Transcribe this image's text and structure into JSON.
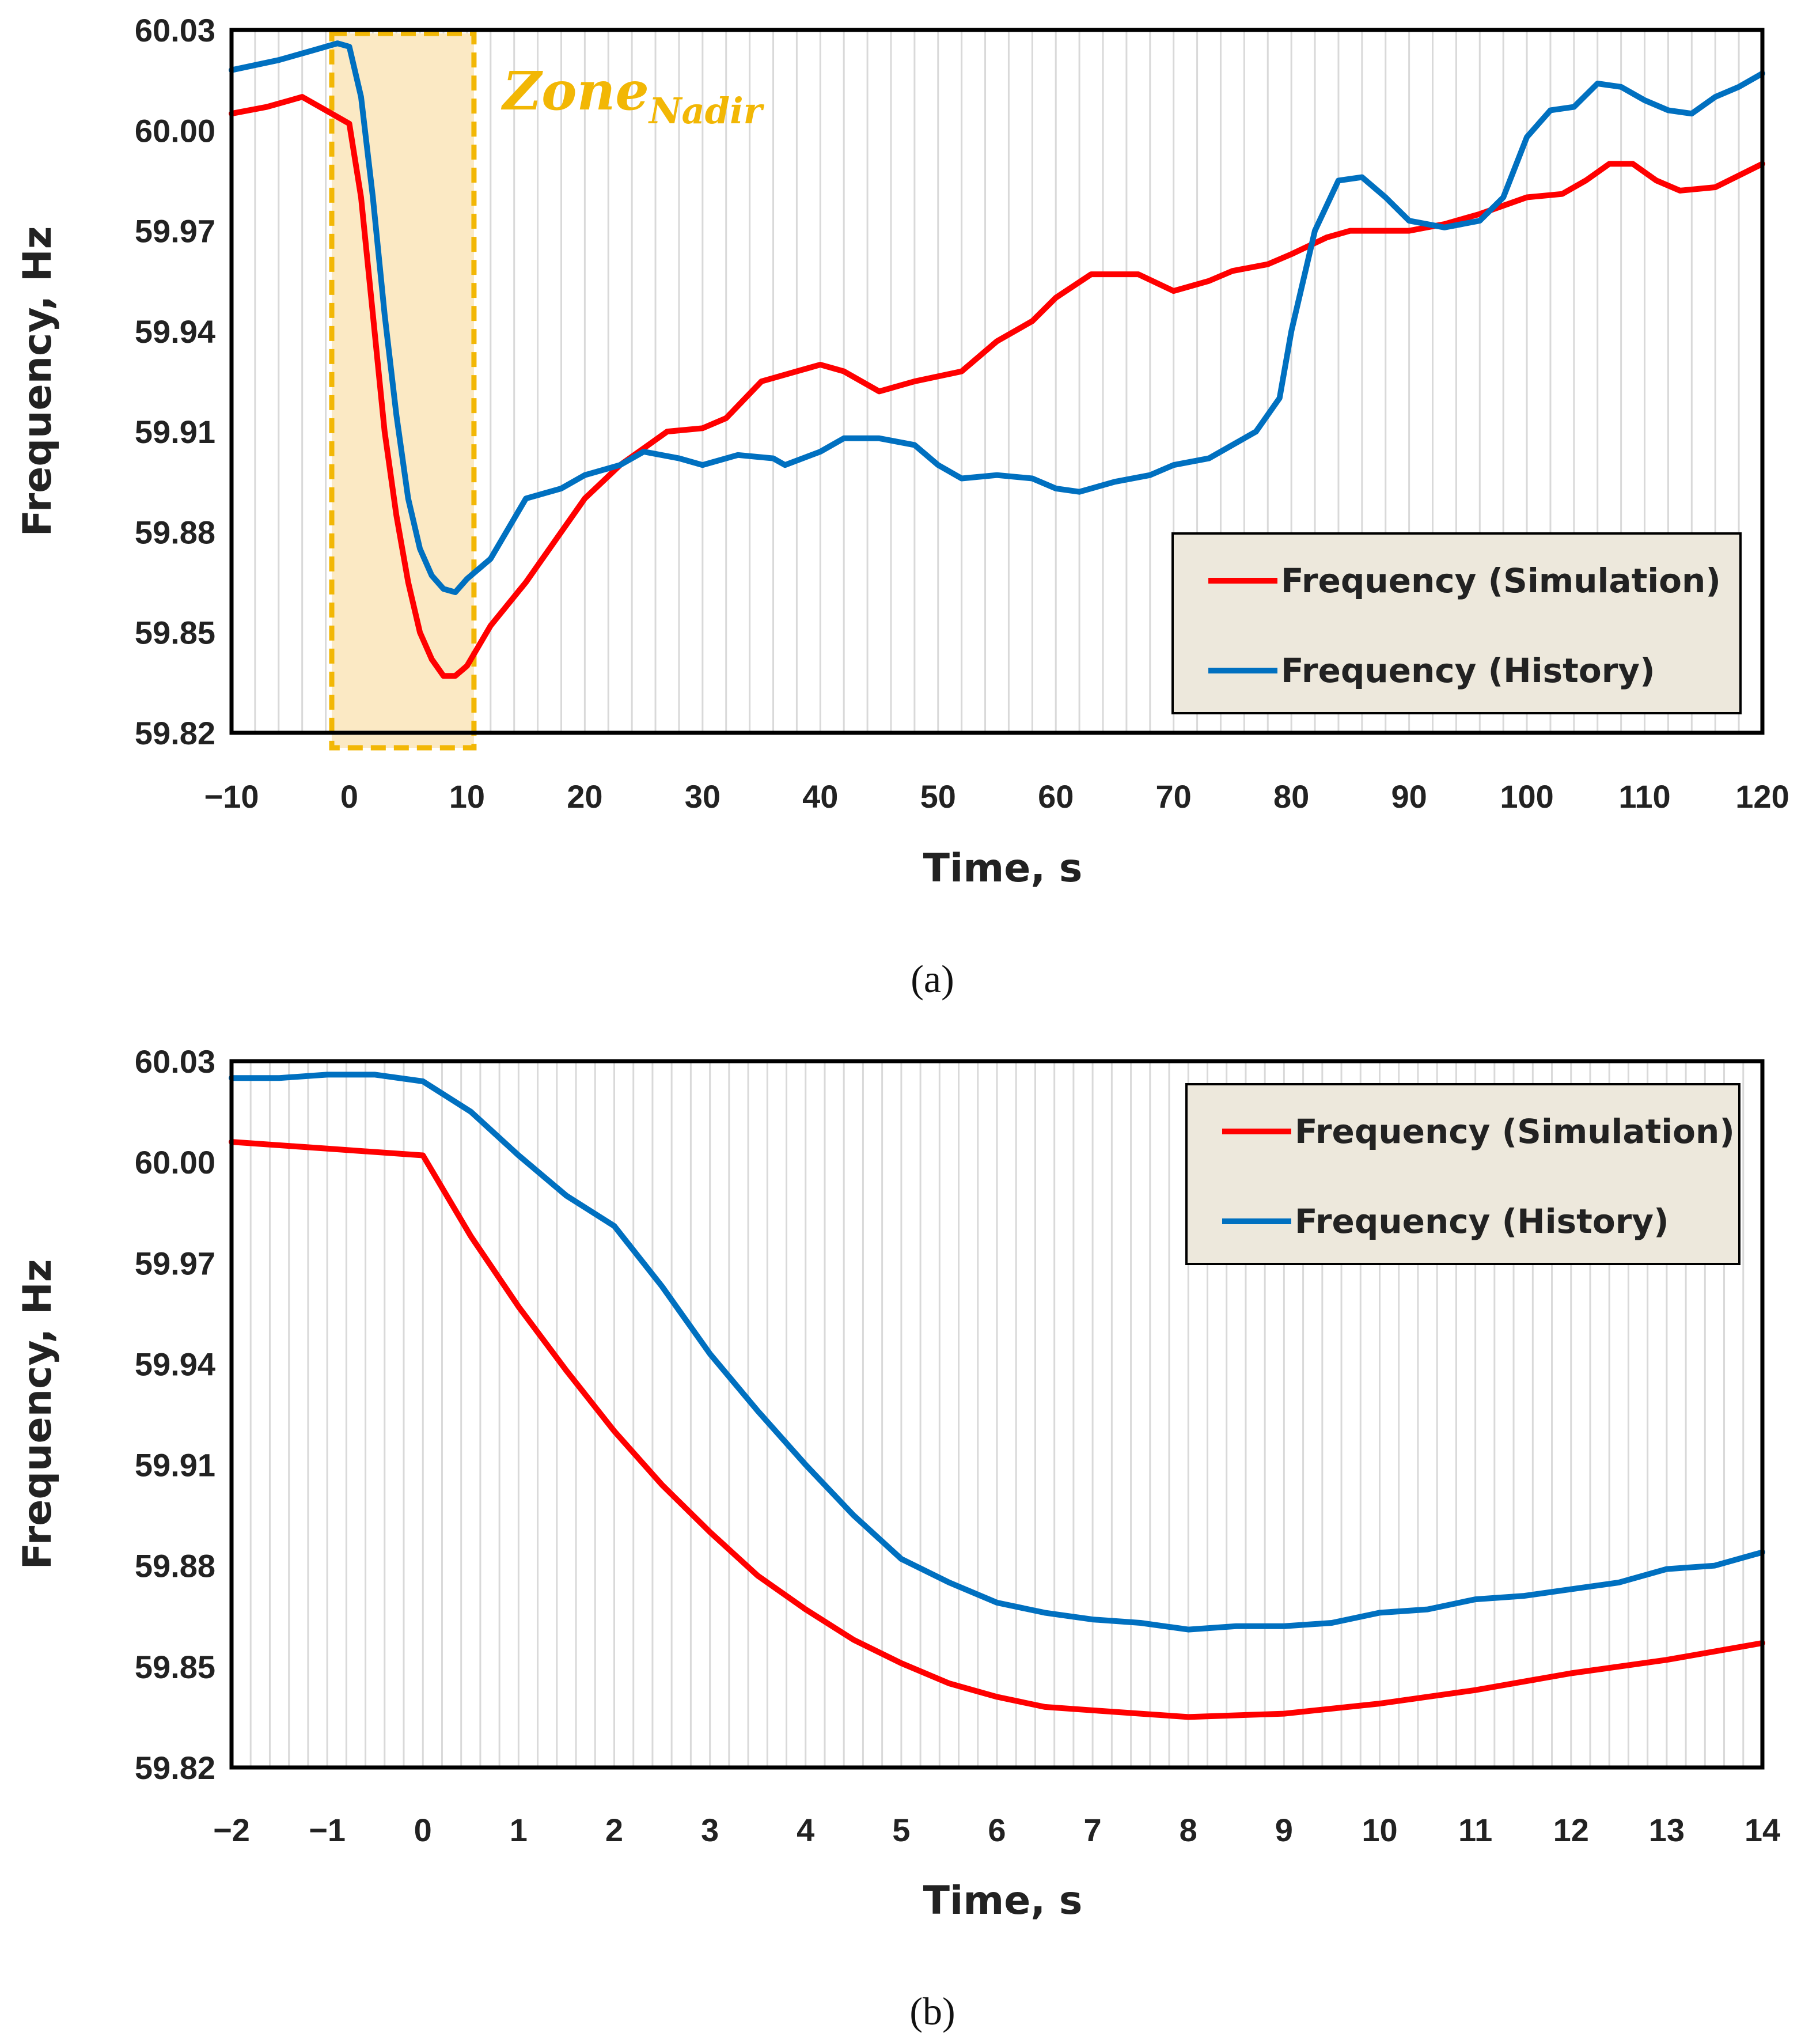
{
  "chart_data": [
    {
      "type": "line",
      "panel_label": "(a)",
      "xlabel": "Time, s",
      "ylabel": "Frequency, Hz",
      "xlim": [
        -10,
        120
      ],
      "ylim": [
        59.82,
        60.03
      ],
      "x_ticks": [
        "−10",
        "0",
        "10",
        "20",
        "30",
        "40",
        "50",
        "60",
        "70",
        "80",
        "90",
        "100",
        "110",
        "120"
      ],
      "y_ticks": [
        "60.03",
        "60.00",
        "59.97",
        "59.94",
        "59.91",
        "59.88",
        "59.85",
        "59.82"
      ],
      "grid": "vertical minor gridlines",
      "legend_position": "bottom-right",
      "annotation": {
        "text": "Zone",
        "subscript": "Nadir",
        "x_range": [
          -1,
          10
        ],
        "color": "#f2b705",
        "fill": "#fbe9c4"
      },
      "series": [
        {
          "name": "Frequency (Simulation)",
          "color": "#ff0000",
          "points": [
            [
              -10,
              60.005
            ],
            [
              -7,
              60.007
            ],
            [
              -4,
              60.01
            ],
            [
              -2,
              60.006
            ],
            [
              0,
              60.002
            ],
            [
              1,
              59.98
            ],
            [
              2,
              59.945
            ],
            [
              3,
              59.91
            ],
            [
              4,
              59.885
            ],
            [
              5,
              59.865
            ],
            [
              6,
              59.85
            ],
            [
              7,
              59.842
            ],
            [
              8,
              59.837
            ],
            [
              9,
              59.837
            ],
            [
              10,
              59.84
            ],
            [
              12,
              59.852
            ],
            [
              15,
              59.865
            ],
            [
              18,
              59.88
            ],
            [
              20,
              59.89
            ],
            [
              23,
              59.9
            ],
            [
              25,
              59.905
            ],
            [
              27,
              59.91
            ],
            [
              30,
              59.911
            ],
            [
              32,
              59.914
            ],
            [
              35,
              59.925
            ],
            [
              38,
              59.928
            ],
            [
              40,
              59.93
            ],
            [
              42,
              59.928
            ],
            [
              45,
              59.922
            ],
            [
              48,
              59.925
            ],
            [
              52,
              59.928
            ],
            [
              55,
              59.937
            ],
            [
              58,
              59.943
            ],
            [
              60,
              59.95
            ],
            [
              63,
              59.957
            ],
            [
              67,
              59.957
            ],
            [
              70,
              59.952
            ],
            [
              73,
              59.955
            ],
            [
              75,
              59.958
            ],
            [
              78,
              59.96
            ],
            [
              80,
              59.963
            ],
            [
              83,
              59.968
            ],
            [
              85,
              59.97
            ],
            [
              90,
              59.97
            ],
            [
              93,
              59.972
            ],
            [
              96,
              59.975
            ],
            [
              100,
              59.98
            ],
            [
              103,
              59.981
            ],
            [
              105,
              59.985
            ],
            [
              107,
              59.99
            ],
            [
              109,
              59.99
            ],
            [
              111,
              59.985
            ],
            [
              113,
              59.982
            ],
            [
              116,
              59.983
            ],
            [
              120,
              59.99
            ]
          ]
        },
        {
          "name": "Frequency (History)",
          "color": "#0070c0",
          "points": [
            [
              -10,
              60.018
            ],
            [
              -6,
              60.021
            ],
            [
              -3,
              60.024
            ],
            [
              -1,
              60.026
            ],
            [
              0,
              60.025
            ],
            [
              1,
              60.01
            ],
            [
              2,
              59.98
            ],
            [
              3,
              59.945
            ],
            [
              4,
              59.915
            ],
            [
              5,
              59.89
            ],
            [
              6,
              59.875
            ],
            [
              7,
              59.867
            ],
            [
              8,
              59.863
            ],
            [
              9,
              59.862
            ],
            [
              10,
              59.866
            ],
            [
              12,
              59.872
            ],
            [
              15,
              59.89
            ],
            [
              18,
              59.893
            ],
            [
              20,
              59.897
            ],
            [
              23,
              59.9
            ],
            [
              25,
              59.904
            ],
            [
              28,
              59.902
            ],
            [
              30,
              59.9
            ],
            [
              33,
              59.903
            ],
            [
              36,
              59.902
            ],
            [
              37,
              59.9
            ],
            [
              40,
              59.904
            ],
            [
              42,
              59.908
            ],
            [
              45,
              59.908
            ],
            [
              48,
              59.906
            ],
            [
              50,
              59.9
            ],
            [
              52,
              59.896
            ],
            [
              55,
              59.897
            ],
            [
              58,
              59.896
            ],
            [
              60,
              59.893
            ],
            [
              62,
              59.892
            ],
            [
              65,
              59.895
            ],
            [
              68,
              59.897
            ],
            [
              70,
              59.9
            ],
            [
              73,
              59.902
            ],
            [
              75,
              59.906
            ],
            [
              77,
              59.91
            ],
            [
              79,
              59.92
            ],
            [
              80,
              59.94
            ],
            [
              82,
              59.97
            ],
            [
              84,
              59.985
            ],
            [
              86,
              59.986
            ],
            [
              88,
              59.98
            ],
            [
              90,
              59.973
            ],
            [
              93,
              59.971
            ],
            [
              96,
              59.973
            ],
            [
              98,
              59.98
            ],
            [
              100,
              59.998
            ],
            [
              102,
              60.006
            ],
            [
              104,
              60.007
            ],
            [
              106,
              60.014
            ],
            [
              108,
              60.013
            ],
            [
              110,
              60.009
            ],
            [
              112,
              60.006
            ],
            [
              114,
              60.005
            ],
            [
              116,
              60.01
            ],
            [
              118,
              60.013
            ],
            [
              120,
              60.017
            ]
          ]
        }
      ]
    },
    {
      "type": "line",
      "panel_label": "(b)",
      "xlabel": "Time, s",
      "ylabel": "Frequency, Hz",
      "xlim": [
        -2,
        14
      ],
      "ylim": [
        59.82,
        60.03
      ],
      "x_ticks": [
        "−2",
        "−1",
        "0",
        "1",
        "2",
        "3",
        "4",
        "5",
        "6",
        "7",
        "8",
        "9",
        "10",
        "11",
        "12",
        "13",
        "14"
      ],
      "y_ticks": [
        "60.03",
        "60.00",
        "59.97",
        "59.94",
        "59.91",
        "59.88",
        "59.85",
        "59.82"
      ],
      "grid": "vertical minor gridlines",
      "legend_position": "top-right",
      "series": [
        {
          "name": "Frequency (Simulation)",
          "color": "#ff0000",
          "points": [
            [
              -2,
              60.006
            ],
            [
              -1,
              60.004
            ],
            [
              0,
              60.002
            ],
            [
              0.5,
              59.978
            ],
            [
              1,
              59.957
            ],
            [
              1.5,
              59.938
            ],
            [
              2,
              59.92
            ],
            [
              2.5,
              59.904
            ],
            [
              3,
              59.89
            ],
            [
              3.5,
              59.877
            ],
            [
              4,
              59.867
            ],
            [
              4.5,
              59.858
            ],
            [
              5,
              59.851
            ],
            [
              5.5,
              59.845
            ],
            [
              6,
              59.841
            ],
            [
              6.5,
              59.838
            ],
            [
              7,
              59.837
            ],
            [
              7.5,
              59.836
            ],
            [
              8,
              59.835
            ],
            [
              9,
              59.836
            ],
            [
              10,
              59.839
            ],
            [
              11,
              59.843
            ],
            [
              12,
              59.848
            ],
            [
              13,
              59.852
            ],
            [
              14,
              59.857
            ]
          ]
        },
        {
          "name": "Frequency (History)",
          "color": "#0070c0",
          "points": [
            [
              -2,
              60.025
            ],
            [
              -1.5,
              60.025
            ],
            [
              -1,
              60.026
            ],
            [
              -0.5,
              60.026
            ],
            [
              0,
              60.024
            ],
            [
              0.5,
              60.015
            ],
            [
              1,
              60.002
            ],
            [
              1.5,
              59.99
            ],
            [
              2,
              59.981
            ],
            [
              2.5,
              59.963
            ],
            [
              3,
              59.943
            ],
            [
              3.5,
              59.926
            ],
            [
              4,
              59.91
            ],
            [
              4.5,
              59.895
            ],
            [
              5,
              59.882
            ],
            [
              5.5,
              59.875
            ],
            [
              6,
              59.869
            ],
            [
              6.5,
              59.866
            ],
            [
              7,
              59.864
            ],
            [
              7.5,
              59.863
            ],
            [
              8,
              59.861
            ],
            [
              8.5,
              59.862
            ],
            [
              9,
              59.862
            ],
            [
              9.5,
              59.863
            ],
            [
              10,
              59.866
            ],
            [
              10.5,
              59.867
            ],
            [
              11,
              59.87
            ],
            [
              11.5,
              59.871
            ],
            [
              12,
              59.873
            ],
            [
              12.5,
              59.875
            ],
            [
              13,
              59.879
            ],
            [
              13.5,
              59.88
            ],
            [
              14,
              59.884
            ]
          ]
        }
      ]
    }
  ]
}
